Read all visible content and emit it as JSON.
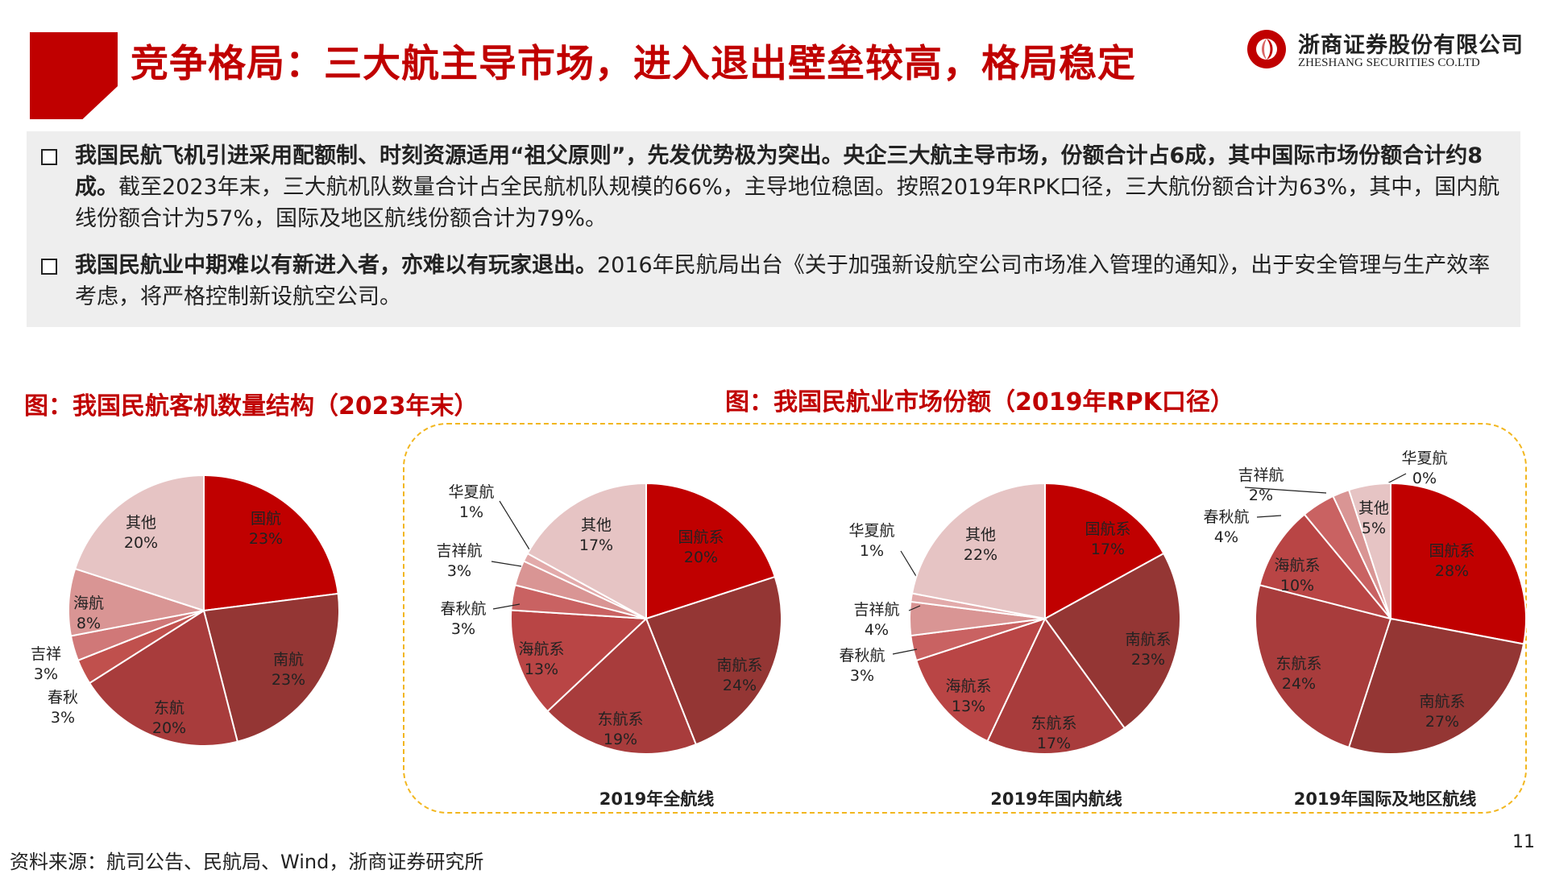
{
  "header": {
    "title": "竞争格局：三大航主导市场，进入退出壁垒较高，格局稳定",
    "logo_cn": "浙商证券股份有限公司",
    "logo_en": "ZHESHANG SECURITIES CO.LTD"
  },
  "bullets": [
    {
      "bold": "我国民航飞机引进采用配额制、时刻资源适用“祖父原则”，先发优势极为突出。央企三大航主导市场，份额合计占6成，其中国际市场份额合计约8成。",
      "text": "截至2023年末，三大航机队数量合计占全民航机队规模的66%，主导地位稳固。按照2019年RPK口径，三大航份额合计为63%，其中，国内航线份额合计为57%，国际及地区航线份额合计为79%。"
    },
    {
      "bold": "我国民航业中期难以有新进入者，亦难以有玩家退出。",
      "text": "2016年民航局出台《关于加强新设航空公司市场准入管理的通知》，出于安全管理与生产效率考虑，将严格控制新设航空公司。"
    }
  ],
  "left_chart_title": "图：我国民航客机数量结构（2023年末）",
  "right_chart_title": "图：我国民航业市场份额（2019年RPK口径）",
  "source": "资料来源：航司公告、民航局、Wind，浙商证券研究所",
  "page_number": "11",
  "colors": {
    "accent": "#c00000",
    "dashed_border": "#f2b61e",
    "text_box_bg": "#eeeeee"
  },
  "chart_data": [
    {
      "type": "pie",
      "title": "",
      "slices": [
        {
          "label": "国航",
          "value": 23,
          "pct": "23%",
          "color": "#c00000"
        },
        {
          "label": "南航",
          "value": 23,
          "pct": "23%",
          "color": "#943634"
        },
        {
          "label": "东航",
          "value": 20,
          "pct": "20%",
          "color": "#a83c3c"
        },
        {
          "label": "春秋",
          "value": 3,
          "pct": "3%",
          "color": "#c0504d"
        },
        {
          "label": "吉祥",
          "value": 3,
          "pct": "3%",
          "color": "#d07878"
        },
        {
          "label": "海航",
          "value": 8,
          "pct": "8%",
          "color": "#d99594"
        },
        {
          "label": "其他",
          "value": 20,
          "pct": "20%",
          "color": "#e6c4c4"
        }
      ]
    },
    {
      "type": "pie",
      "title": "2019年全航线",
      "slices": [
        {
          "label": "国航系",
          "value": 20,
          "pct": "20%",
          "color": "#c00000"
        },
        {
          "label": "南航系",
          "value": 24,
          "pct": "24%",
          "color": "#943634"
        },
        {
          "label": "东航系",
          "value": 19,
          "pct": "19%",
          "color": "#a83c3c"
        },
        {
          "label": "海航系",
          "value": 13,
          "pct": "13%",
          "color": "#b94545"
        },
        {
          "label": "春秋航",
          "value": 3,
          "pct": "3%",
          "color": "#c96262"
        },
        {
          "label": "吉祥航",
          "value": 3,
          "pct": "3%",
          "color": "#d99594"
        },
        {
          "label": "华夏航",
          "value": 1,
          "pct": "1%",
          "color": "#e2aaaa"
        },
        {
          "label": "其他",
          "value": 17,
          "pct": "17%",
          "color": "#e6c4c4"
        }
      ]
    },
    {
      "type": "pie",
      "title": "2019年国内航线",
      "slices": [
        {
          "label": "国航系",
          "value": 17,
          "pct": "17%",
          "color": "#c00000"
        },
        {
          "label": "南航系",
          "value": 23,
          "pct": "23%",
          "color": "#943634"
        },
        {
          "label": "东航系",
          "value": 17,
          "pct": "17%",
          "color": "#a83c3c"
        },
        {
          "label": "海航系",
          "value": 13,
          "pct": "13%",
          "color": "#b94545"
        },
        {
          "label": "春秋航",
          "value": 3,
          "pct": "3%",
          "color": "#c96262"
        },
        {
          "label": "吉祥航",
          "value": 4,
          "pct": "4%",
          "color": "#d99594"
        },
        {
          "label": "华夏航",
          "value": 1,
          "pct": "1%",
          "color": "#e2aaaa"
        },
        {
          "label": "其他",
          "value": 22,
          "pct": "22%",
          "color": "#e6c4c4"
        }
      ]
    },
    {
      "type": "pie",
      "title": "2019年国际及地区航线",
      "slices": [
        {
          "label": "国航系",
          "value": 28,
          "pct": "28%",
          "color": "#c00000"
        },
        {
          "label": "南航系",
          "value": 27,
          "pct": "27%",
          "color": "#943634"
        },
        {
          "label": "东航系",
          "value": 24,
          "pct": "24%",
          "color": "#a83c3c"
        },
        {
          "label": "海航系",
          "value": 10,
          "pct": "10%",
          "color": "#b94545"
        },
        {
          "label": "春秋航",
          "value": 4,
          "pct": "4%",
          "color": "#c96262"
        },
        {
          "label": "吉祥航",
          "value": 2,
          "pct": "2%",
          "color": "#d99594"
        },
        {
          "label": "华夏航",
          "value": 0,
          "pct": "0%",
          "color": "#e2aaaa"
        },
        {
          "label": "其他",
          "value": 5,
          "pct": "5%",
          "color": "#e6c4c4"
        }
      ]
    }
  ]
}
